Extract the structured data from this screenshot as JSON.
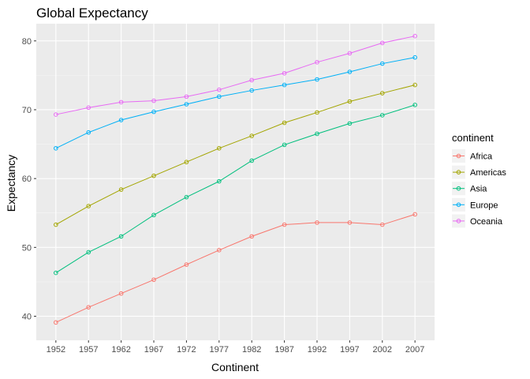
{
  "chart_data": {
    "type": "line",
    "title": "Global Expectancy",
    "xlabel": "Continent",
    "ylabel": "Expectancy",
    "x": [
      1952,
      1957,
      1962,
      1967,
      1972,
      1977,
      1982,
      1987,
      1992,
      1997,
      2002,
      2007
    ],
    "ylim": [
      36.5,
      82.5
    ],
    "yticks": [
      40,
      50,
      60,
      70,
      80
    ],
    "grid": true,
    "legend": {
      "title": "continent",
      "position": "right"
    },
    "series": [
      {
        "name": "Africa",
        "color": "#F8766D",
        "values": [
          39.1,
          41.3,
          43.3,
          45.3,
          47.5,
          49.6,
          51.6,
          53.3,
          53.6,
          53.6,
          53.3,
          54.8
        ]
      },
      {
        "name": "Americas",
        "color": "#A3A500",
        "values": [
          53.3,
          56.0,
          58.4,
          60.4,
          62.4,
          64.4,
          66.2,
          68.1,
          69.6,
          71.2,
          72.4,
          73.6
        ]
      },
      {
        "name": "Asia",
        "color": "#00BF7D",
        "values": [
          46.3,
          49.3,
          51.6,
          54.7,
          57.3,
          59.6,
          62.6,
          64.9,
          66.5,
          68.0,
          69.2,
          70.7
        ]
      },
      {
        "name": "Europe",
        "color": "#00B0F6",
        "values": [
          64.4,
          66.7,
          68.5,
          69.7,
          70.8,
          71.9,
          72.8,
          73.6,
          74.4,
          75.5,
          76.7,
          77.6
        ]
      },
      {
        "name": "Oceania",
        "color": "#E76BF3",
        "values": [
          69.3,
          70.3,
          71.1,
          71.3,
          71.9,
          72.9,
          74.3,
          75.3,
          76.9,
          78.2,
          79.7,
          80.7
        ]
      }
    ]
  }
}
